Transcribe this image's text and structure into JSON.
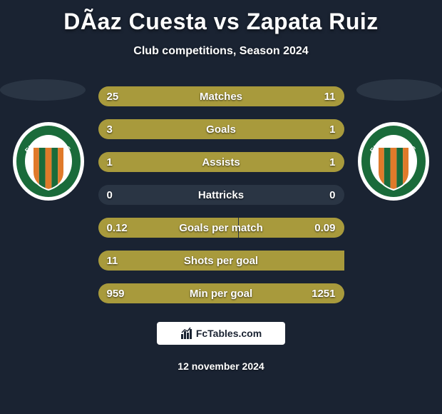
{
  "title": "DÃ­az Cuesta vs Zapata Ruiz",
  "subtitle": "Club competitions, Season 2024",
  "date": "12 november 2024",
  "footer": "FcTables.com",
  "colors": {
    "left_bar": "#a89a3c",
    "right_bar": "#a89a3c",
    "track": "#2a3544",
    "background": "#1a2332"
  },
  "team_badge": {
    "outer_ring": "#ffffff",
    "inner_ring": "#1a6b3a",
    "text": "ENVIGADO F.C.",
    "shield_stripes": [
      "#e07a2a",
      "#1a6b3a",
      "#e07a2a",
      "#1a6b3a",
      "#e07a2a"
    ],
    "shield_border": "#ffffff"
  },
  "stats": [
    {
      "label": "Matches",
      "left_val": "25",
      "right_val": "11",
      "left_pct": 69.4,
      "right_pct": 30.6
    },
    {
      "label": "Goals",
      "left_val": "3",
      "right_val": "1",
      "left_pct": 75.0,
      "right_pct": 25.0
    },
    {
      "label": "Assists",
      "left_val": "1",
      "right_val": "1",
      "left_pct": 50.0,
      "right_pct": 50.0
    },
    {
      "label": "Hattricks",
      "left_val": "0",
      "right_val": "0",
      "left_pct": 0.0,
      "right_pct": 0.0
    },
    {
      "label": "Goals per match",
      "left_val": "0.12",
      "right_val": "0.09",
      "left_pct": 57.1,
      "right_pct": 42.9
    },
    {
      "label": "Shots per goal",
      "left_val": "11",
      "right_val": "",
      "left_pct": 100.0,
      "right_pct": 0.0
    },
    {
      "label": "Min per goal",
      "left_val": "959",
      "right_val": "1251",
      "left_pct": 43.4,
      "right_pct": 56.6
    }
  ]
}
